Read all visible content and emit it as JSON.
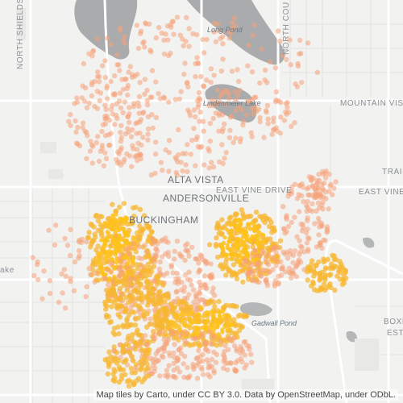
{
  "map": {
    "place_labels": {
      "alta_vista": "ALTA VISTA",
      "andersonville": "ANDERSONVILLE",
      "buckingham": "BUCKINGHAM"
    },
    "road_labels": {
      "mountain_vista": "MOUNTAIN VISTA",
      "east_vine_drive": "EAST VINE DRIVE",
      "east_vine_2": "EAST VINE",
      "north_shields": "NORTH SHIELDS",
      "north_county": "NORTH COU",
      "trail": "TRAI",
      "boxe": "BOXE",
      "este": "ESTE",
      "lake": "ake"
    },
    "water_labels": {
      "long_pond": "Long Pond",
      "lindenmeier_lake": "Lindenmeier Lake",
      "gadwall_pond": "Gadwall Pond"
    },
    "attribution": "Map tiles by Carto, under CC BY 3.0. Data by OpenStreetMap, under ODbL.",
    "colors": {
      "background": "#f2f2f0",
      "water": "#a9abad",
      "major_road": "#ffffff",
      "minor_road": "#e3e3e1",
      "dot_low": "#f6a37a",
      "dot_high": "#ffc21a"
    }
  }
}
